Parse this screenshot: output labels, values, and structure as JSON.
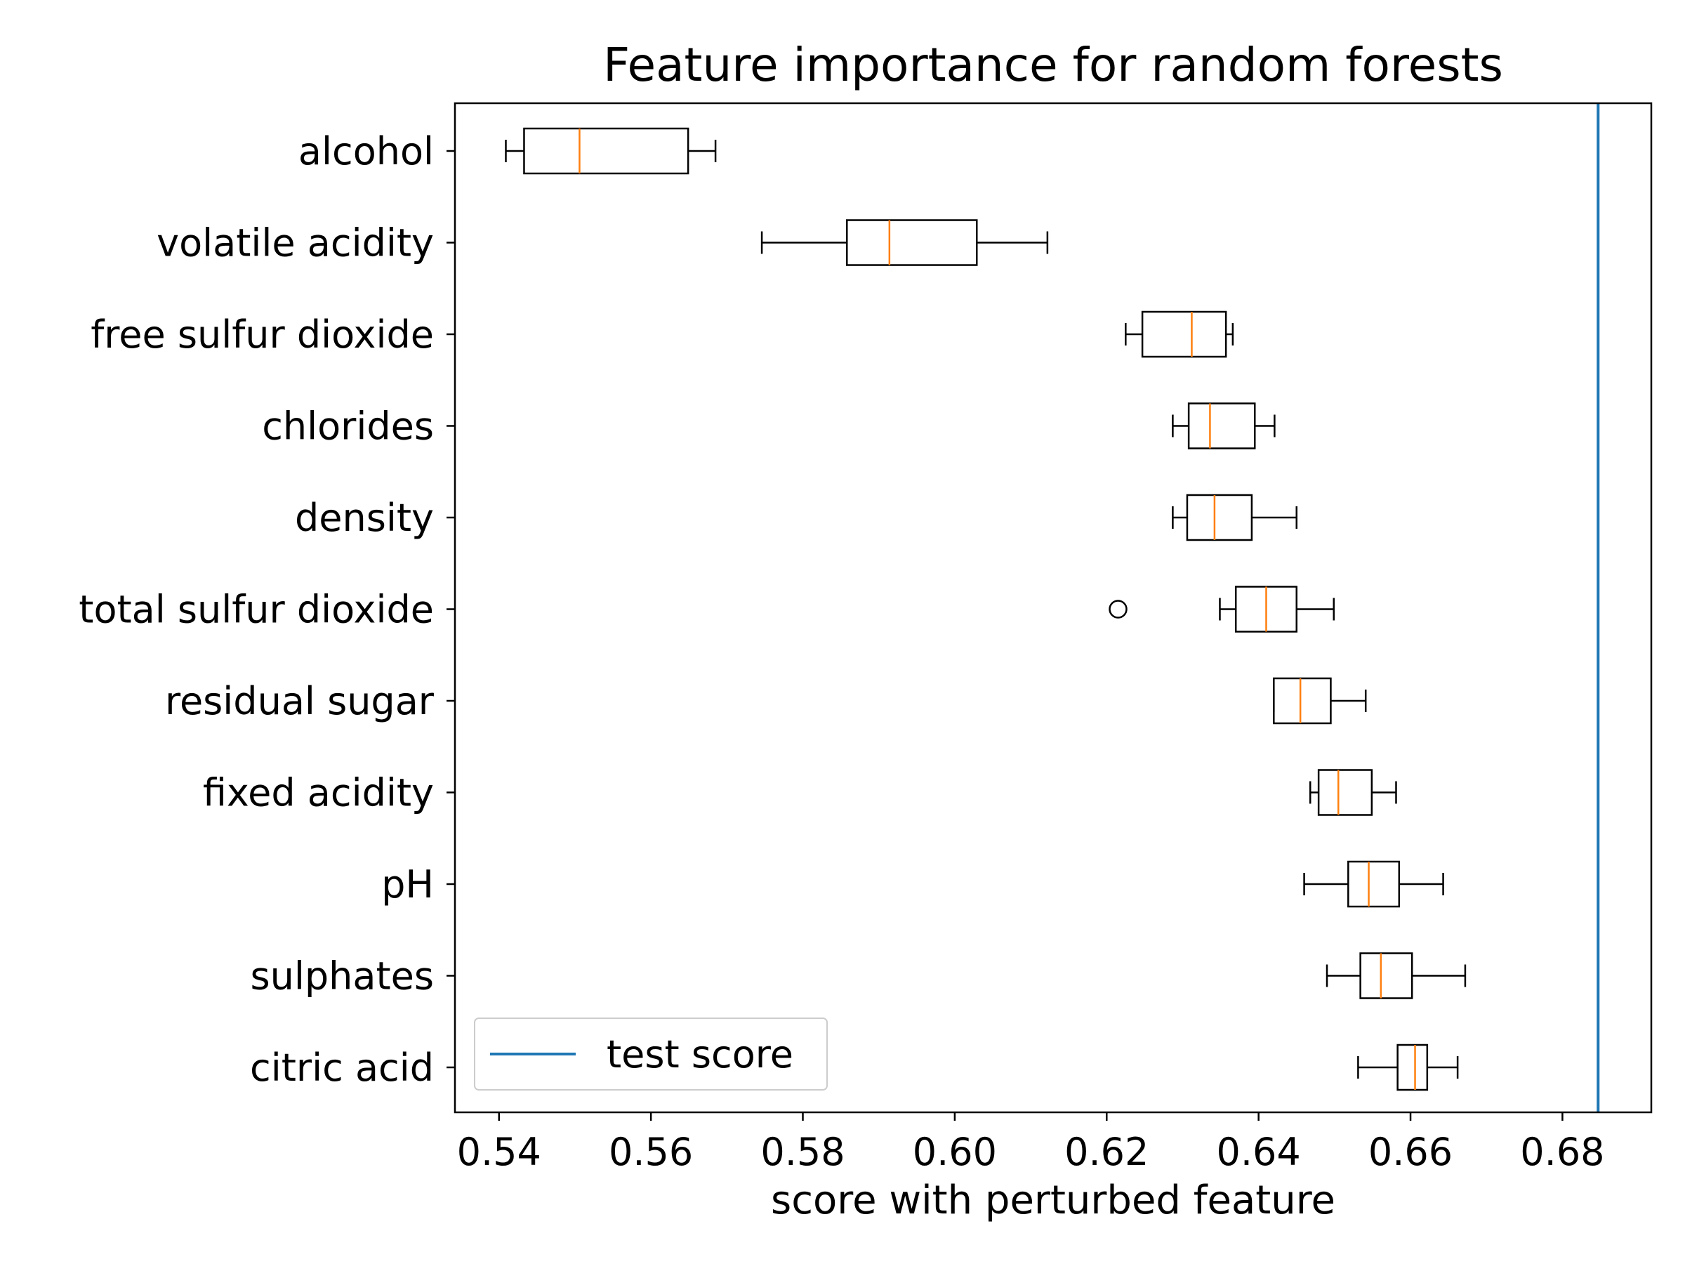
{
  "chart_data": {
    "type": "boxplot",
    "orientation": "horizontal",
    "title": "Feature importance for random forests",
    "xlabel": "score with perturbed feature",
    "ylabel": "",
    "xlim": [
      0.5342,
      0.6917
    ],
    "xticks": [
      "0.54",
      "0.56",
      "0.58",
      "0.60",
      "0.62",
      "0.64",
      "0.66",
      "0.68"
    ],
    "xtick_values": [
      0.54,
      0.56,
      0.58,
      0.6,
      0.62,
      0.64,
      0.66,
      0.68
    ],
    "grid": false,
    "categories": [
      "alcohol",
      "volatile acidity",
      "free sulfur dioxide",
      "chlorides",
      "density",
      "total sulfur dioxide",
      "residual sugar",
      "fixed acidity",
      "pH",
      "sulphates",
      "citric acid"
    ],
    "boxes": [
      {
        "label": "alcohol",
        "whisker_low": 0.5409,
        "q1": 0.5433,
        "median": 0.5506,
        "q3": 0.5649,
        "whisker_high": 0.5685,
        "outliers": []
      },
      {
        "label": "volatile acidity",
        "whisker_low": 0.5746,
        "q1": 0.5858,
        "median": 0.5914,
        "q3": 0.6029,
        "whisker_high": 0.6122,
        "outliers": []
      },
      {
        "label": "free sulfur dioxide",
        "whisker_low": 0.6225,
        "q1": 0.6247,
        "median": 0.6312,
        "q3": 0.6357,
        "whisker_high": 0.6366,
        "outliers": []
      },
      {
        "label": "chlorides",
        "whisker_low": 0.6287,
        "q1": 0.6308,
        "median": 0.6336,
        "q3": 0.6395,
        "whisker_high": 0.6421,
        "outliers": []
      },
      {
        "label": "density",
        "whisker_low": 0.6287,
        "q1": 0.6306,
        "median": 0.6342,
        "q3": 0.6391,
        "whisker_high": 0.645,
        "outliers": []
      },
      {
        "label": "total sulfur dioxide",
        "whisker_low": 0.6349,
        "q1": 0.637,
        "median": 0.641,
        "q3": 0.645,
        "whisker_high": 0.6499,
        "outliers": [
          0.6215
        ]
      },
      {
        "label": "residual sugar",
        "whisker_low": 0.642,
        "q1": 0.642,
        "median": 0.6455,
        "q3": 0.6495,
        "whisker_high": 0.6541,
        "outliers": []
      },
      {
        "label": "fixed acidity",
        "whisker_low": 0.6468,
        "q1": 0.6479,
        "median": 0.6505,
        "q3": 0.6549,
        "whisker_high": 0.6581,
        "outliers": []
      },
      {
        "label": "pH",
        "whisker_low": 0.646,
        "q1": 0.6518,
        "median": 0.6545,
        "q3": 0.6585,
        "whisker_high": 0.6643,
        "outliers": []
      },
      {
        "label": "sulphates",
        "whisker_low": 0.649,
        "q1": 0.6534,
        "median": 0.6561,
        "q3": 0.6602,
        "whisker_high": 0.6672,
        "outliers": []
      },
      {
        "label": "citric acid",
        "whisker_low": 0.6531,
        "q1": 0.6583,
        "median": 0.6606,
        "q3": 0.6622,
        "whisker_high": 0.6662,
        "outliers": []
      }
    ],
    "reference_line": {
      "label": "test score",
      "value": 0.6847,
      "color": "#1f77b4"
    },
    "legend": {
      "position": "lower-left",
      "entries": [
        "test score"
      ]
    },
    "colors": {
      "box": "#000000",
      "median": "#ff7f0e",
      "reference": "#1f77b4"
    }
  }
}
